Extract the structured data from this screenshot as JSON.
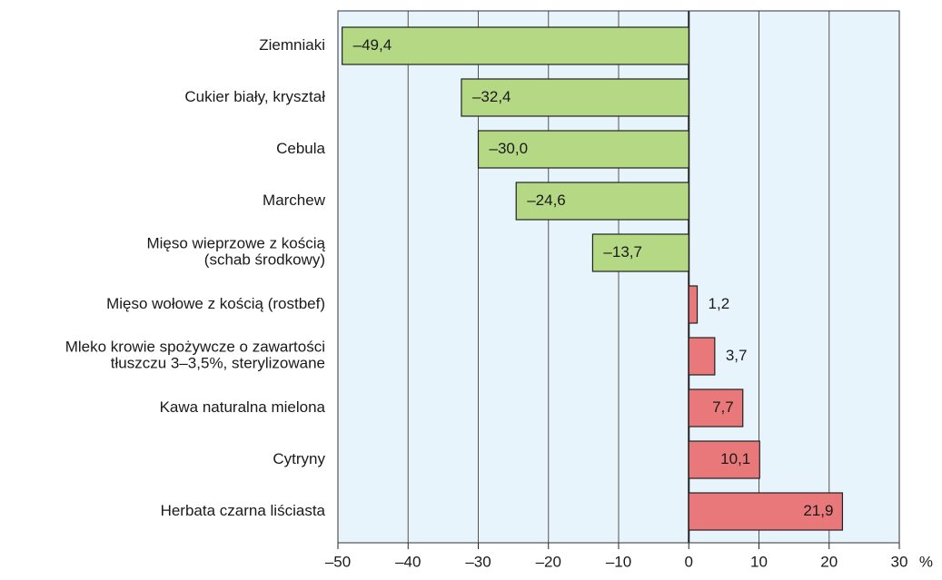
{
  "chart_data": {
    "type": "bar",
    "orientation": "horizontal",
    "categories": [
      "Ziemniaki",
      "Cukier biały, kryształ",
      "Cebula",
      "Marchew",
      "Mięso wieprzowe z kością\n(schab środkowy)",
      "Mięso wołowe z kością (rostbef)",
      "Mleko krowie spożywcze o zawartości\ntłuszczu 3–3,5%, sterylizowane",
      "Kawa naturalna mielona",
      "Cytryny",
      "Herbata czarna liściasta"
    ],
    "values": [
      -49.4,
      -32.4,
      -30.0,
      -24.6,
      -13.7,
      1.2,
      3.7,
      7.7,
      10.1,
      21.9
    ],
    "value_labels": [
      "–49,4",
      "–32,4",
      "–30,0",
      "–24,6",
      "–13,7",
      "1,2",
      "3,7",
      "7,7",
      "10,1",
      "21,9"
    ],
    "colors": [
      "#b5d884",
      "#b5d884",
      "#b5d884",
      "#b5d884",
      "#b5d884",
      "#e8787a",
      "#e8787a",
      "#e8787a",
      "#e8787a",
      "#e8787a"
    ],
    "xlabel": "%",
    "xlim": [
      -50,
      30
    ],
    "xticks": [
      {
        "value": -50,
        "label": "–50"
      },
      {
        "value": -40,
        "label": "–40"
      },
      {
        "value": -30,
        "label": "–30"
      },
      {
        "value": -20,
        "label": "–20"
      },
      {
        "value": -10,
        "label": "–10"
      },
      0,
      10,
      20,
      30
    ],
    "grid": true
  }
}
